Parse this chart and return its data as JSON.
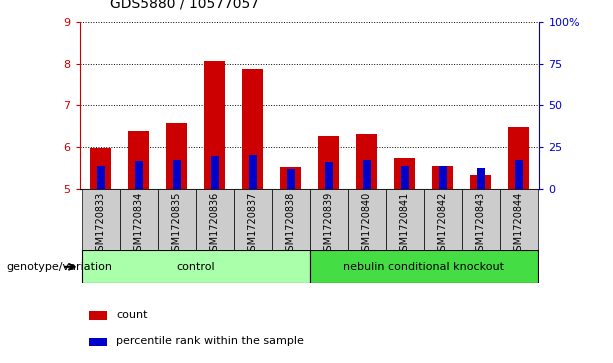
{
  "title": "GDS5880 / 10577057",
  "samples": [
    "GSM1720833",
    "GSM1720834",
    "GSM1720835",
    "GSM1720836",
    "GSM1720837",
    "GSM1720838",
    "GSM1720839",
    "GSM1720840",
    "GSM1720841",
    "GSM1720842",
    "GSM1720843",
    "GSM1720844"
  ],
  "count_values": [
    5.98,
    6.38,
    6.57,
    8.05,
    7.88,
    5.52,
    6.27,
    6.31,
    5.73,
    5.55,
    5.32,
    6.47
  ],
  "percentile_values": [
    5.55,
    5.67,
    5.68,
    5.79,
    5.8,
    5.48,
    5.65,
    5.68,
    5.55,
    5.55,
    5.5,
    5.68
  ],
  "ymin": 5,
  "ymax": 9,
  "yticks": [
    5,
    6,
    7,
    8,
    9
  ],
  "y2ticks": [
    0,
    25,
    50,
    75,
    100
  ],
  "y2labels": [
    "0",
    "25",
    "50",
    "75",
    "100%"
  ],
  "bar_color": "#cc0000",
  "percentile_color": "#0000cc",
  "bar_width": 0.55,
  "groups": [
    {
      "label": "control",
      "start": 0,
      "end": 6,
      "color": "#aaffaa"
    },
    {
      "label": "nebulin conditional knockout",
      "start": 6,
      "end": 12,
      "color": "#44dd44"
    }
  ],
  "group_row_color": "#cccccc",
  "group_label_y": "genotype/variation",
  "legend_count": "count",
  "legend_percentile": "percentile rank within the sample",
  "axis_color_left": "#cc0000",
  "axis_color_right": "#0000cc"
}
